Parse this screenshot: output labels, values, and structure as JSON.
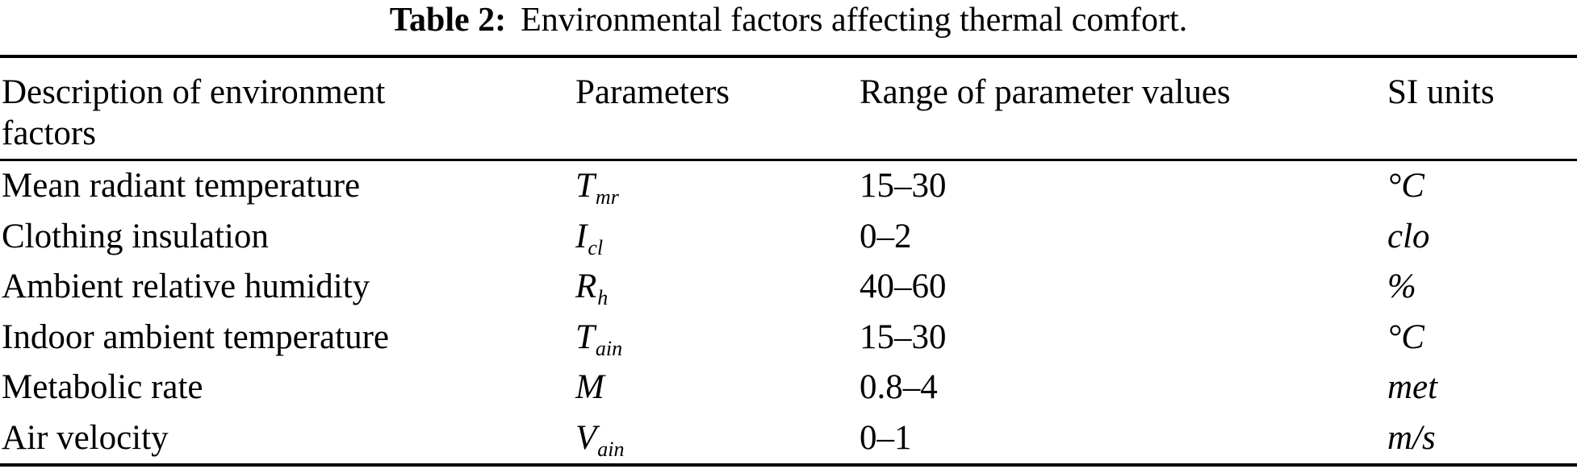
{
  "caption": {
    "label": "Table 2:",
    "text": "Environmental factors affecting thermal comfort."
  },
  "table": {
    "columns": [
      {
        "header": "Description of environment factors"
      },
      {
        "header": "Parameters"
      },
      {
        "header": "Range of parameter values"
      },
      {
        "header": "SI units"
      }
    ],
    "rows": [
      {
        "description": "Mean radiant temperature",
        "parameter": {
          "base": "T",
          "subscript": "mr"
        },
        "range": "15–30",
        "si_unit": "°C"
      },
      {
        "description": "Clothing insulation",
        "parameter": {
          "base": "I",
          "subscript": "cl"
        },
        "range": "0–2",
        "si_unit": "clo"
      },
      {
        "description": "Ambient relative humidity",
        "parameter": {
          "base": "R",
          "subscript": "h"
        },
        "range": "40–60",
        "si_unit": "%"
      },
      {
        "description": "Indoor ambient temperature",
        "parameter": {
          "base": "T",
          "subscript": "ain"
        },
        "range": "15–30",
        "si_unit": "°C"
      },
      {
        "description": "Metabolic rate",
        "parameter": {
          "base": "M",
          "subscript": ""
        },
        "range": "0.8–4",
        "si_unit": "met"
      },
      {
        "description": "Air velocity",
        "parameter": {
          "base": "V",
          "subscript": "ain"
        },
        "range": "0–1",
        "si_unit": "m/s"
      }
    ]
  }
}
